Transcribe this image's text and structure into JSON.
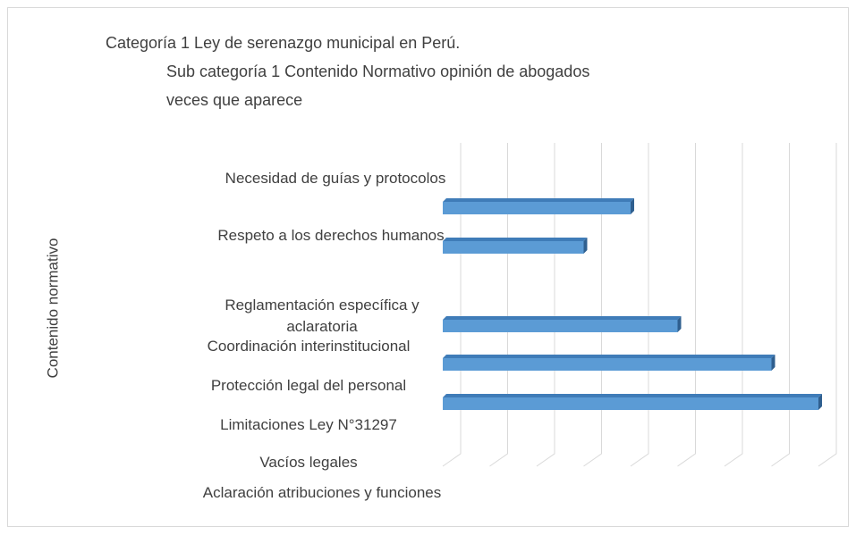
{
  "chart_data": {
    "type": "bar3d_horizontal",
    "title": "Categoría 1 Ley de serenazgo municipal en Perú.",
    "subtitle": "Sub categoría 1 Contenido Normativo opinión de abogados",
    "y_label": "Contenido normativo",
    "categories": [
      "Necesidad de guías y protocolos",
      "Respeto a los derechos humanos",
      "Reglamentación específica y aclaratoria",
      "Coordinación interinstitucional",
      "Protección legal del personal",
      "Limitaciones Ley N°31297",
      "Vacíos legales",
      "Aclaración atribuciones y funciones"
    ],
    "series": [
      {
        "name": "veces que aparece",
        "color": "#5b9bd5",
        "values": [
          4,
          3,
          5,
          7,
          8,
          null,
          null,
          null
        ]
      }
    ],
    "xlim": [
      0,
      8
    ],
    "xticks": [
      0,
      1,
      2,
      3,
      4,
      5,
      6,
      7,
      8
    ],
    "grid": true
  }
}
